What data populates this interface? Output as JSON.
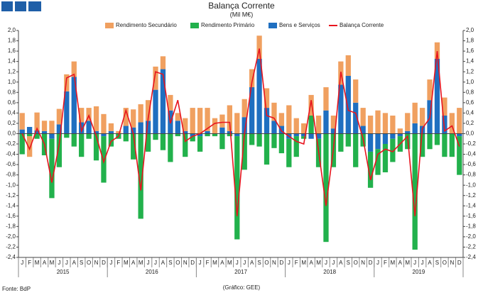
{
  "chart_data": {
    "type": "bar",
    "stacked": true,
    "title": "Balança Corrente",
    "subtitle": "(Mil M€)",
    "source": "Fonte: BdP",
    "credit": "(Gráfico: GEE)",
    "categories": [
      "J",
      "F",
      "M",
      "A",
      "M",
      "J",
      "J",
      "A",
      "S",
      "O",
      "N",
      "D",
      "J",
      "F",
      "M",
      "A",
      "M",
      "J",
      "J",
      "A",
      "S",
      "O",
      "N",
      "D",
      "J",
      "F",
      "M",
      "A",
      "M",
      "J",
      "J",
      "A",
      "S",
      "O",
      "N",
      "D",
      "J",
      "F",
      "M",
      "A",
      "M",
      "J",
      "J",
      "A",
      "S",
      "O",
      "N",
      "D",
      "J",
      "F",
      "M",
      "A",
      "M",
      "J",
      "J",
      "A",
      "S",
      "O",
      "N",
      "D"
    ],
    "years": [
      "2015",
      "2016",
      "2017",
      "2018",
      "2019"
    ],
    "series": [
      {
        "name": "Bens e Serviços",
        "color": "#1f6fc0",
        "values": [
          0.08,
          0.13,
          0.06,
          0.05,
          -0.1,
          0.18,
          0.82,
          1.1,
          0.22,
          0.25,
          0.05,
          -0.05,
          0.05,
          0.0,
          0.15,
          0.12,
          0.22,
          0.25,
          0.85,
          1.25,
          0.45,
          0.25,
          0.05,
          -0.05,
          -0.05,
          0.05,
          0.0,
          0.12,
          0.05,
          -0.05,
          0.32,
          0.9,
          1.45,
          0.5,
          0.25,
          0.15,
          -0.1,
          -0.05,
          -0.05,
          -0.1,
          -0.1,
          0.45,
          0.1,
          0.95,
          1.12,
          0.6,
          0.15,
          -0.35,
          -0.3,
          -0.2,
          -0.1,
          -0.05,
          0.05,
          0.2,
          0.15,
          0.65,
          1.45,
          0.35,
          0.0,
          -0.05
        ]
      },
      {
        "name": "Rendimento Primário",
        "color": "#22b14c",
        "values": [
          -0.4,
          -0.05,
          -0.1,
          -0.42,
          -1.15,
          -0.65,
          -0.08,
          -0.25,
          -0.45,
          -0.1,
          -0.52,
          -0.9,
          -0.25,
          -0.1,
          -0.15,
          -0.5,
          -1.65,
          -0.35,
          -0.12,
          -0.32,
          -0.55,
          -0.05,
          -0.45,
          -0.1,
          -0.3,
          -0.05,
          -0.05,
          -0.3,
          -0.05,
          -2.0,
          -0.7,
          -0.22,
          -0.25,
          -0.6,
          -0.28,
          -0.38,
          -0.55,
          -0.4,
          -0.05,
          0.35,
          -0.55,
          -2.1,
          -0.65,
          -0.35,
          -0.25,
          -0.65,
          -0.25,
          -0.7,
          -0.5,
          -0.55,
          -0.45,
          -0.3,
          -0.3,
          -2.25,
          -0.45,
          -0.3,
          -0.22,
          -0.45,
          -0.45,
          -0.75
        ]
      },
      {
        "name": "Rendimento Secundário",
        "color": "#f0a060",
        "values": [
          0.32,
          -0.4,
          0.35,
          0.2,
          0.25,
          0.3,
          0.33,
          0.3,
          0.28,
          0.25,
          0.48,
          0.38,
          0.15,
          0.05,
          0.35,
          0.35,
          0.35,
          0.4,
          0.45,
          0.25,
          0.3,
          0.15,
          0.25,
          0.5,
          0.5,
          0.45,
          0.3,
          0.25,
          0.5,
          0.4,
          0.35,
          0.35,
          0.45,
          0.38,
          0.35,
          0.25,
          0.55,
          0.3,
          0.2,
          0.4,
          0.35,
          0.45,
          0.25,
          0.45,
          0.4,
          0.45,
          0.35,
          0.35,
          0.45,
          0.4,
          0.35,
          0.1,
          0.35,
          0.4,
          0.35,
          0.4,
          0.32,
          0.35,
          0.4,
          0.5
        ]
      },
      {
        "name": "Balança Corrente",
        "color": "#e8141e",
        "kind": "line",
        "values": [
          0.0,
          -0.3,
          0.1,
          -0.2,
          -0.95,
          -0.2,
          1.08,
          1.15,
          0.05,
          0.35,
          -0.05,
          -0.55,
          -0.15,
          -0.05,
          0.45,
          0.0,
          -1.1,
          0.3,
          1.2,
          1.15,
          0.2,
          0.65,
          -0.15,
          -0.05,
          0.0,
          0.1,
          0.2,
          0.22,
          0.22,
          -1.6,
          0.0,
          1.0,
          1.65,
          0.35,
          0.3,
          0.05,
          -0.05,
          -0.15,
          -0.2,
          0.65,
          -0.35,
          -1.4,
          -0.3,
          1.2,
          0.45,
          0.4,
          -0.1,
          -0.9,
          -0.4,
          -0.3,
          -0.35,
          -0.2,
          -0.05,
          -1.6,
          0.1,
          0.3,
          1.6,
          0.05,
          0.15,
          -0.25
        ]
      }
    ],
    "legend_order": [
      2,
      1,
      0,
      3
    ],
    "ylim": [
      -2.4,
      2.0
    ],
    "yticks": [
      {
        "value": 2.0,
        "label": "2,0"
      },
      {
        "value": 1.8,
        "label": "1,8"
      },
      {
        "value": 1.6,
        "label": "1,6"
      },
      {
        "value": 1.4,
        "label": "1,4"
      },
      {
        "value": 1.2,
        "label": "1,2"
      },
      {
        "value": 1.0,
        "label": "1,0"
      },
      {
        "value": 0.8,
        "label": "0,8"
      },
      {
        "value": 0.6,
        "label": "0,6"
      },
      {
        "value": 0.4,
        "label": "0,4"
      },
      {
        "value": 0.2,
        "label": "0,2"
      },
      {
        "value": 0,
        "label": "0,0"
      },
      {
        "value": -0.2,
        "label": "-0,2"
      },
      {
        "value": -0.4,
        "label": "-0,4"
      },
      {
        "value": -0.6,
        "label": "-0,6"
      },
      {
        "value": -0.8,
        "label": "-0,8"
      },
      {
        "value": -1.0,
        "label": "-1,0"
      },
      {
        "value": -1.2,
        "label": "-1,2"
      },
      {
        "value": -1.4,
        "label": "-1,4"
      },
      {
        "value": -1.6,
        "label": "-1,6"
      },
      {
        "value": -1.8,
        "label": "-1,8"
      },
      {
        "value": -2.0,
        "label": "-2,0"
      },
      {
        "value": -2.2,
        "label": "-2,2"
      },
      {
        "value": -2.4,
        "label": "-2,4"
      }
    ]
  }
}
